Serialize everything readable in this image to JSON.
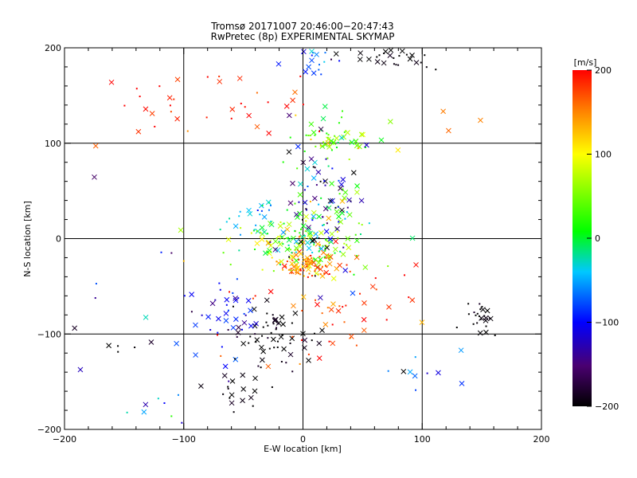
{
  "chart_data": {
    "type": "scatter",
    "title": "Tromsø 20171007 20:46:00−20:47:43",
    "subtitle": "RwPretec (8p) EXPERIMENTAL SKYMAP",
    "xlabel": "E-W location [km]",
    "ylabel": "N-S location [km]",
    "xlim": [
      -200,
      200
    ],
    "ylim": [
      -200,
      200
    ],
    "x_ticks": [
      "−200",
      "−100",
      "0",
      "100",
      "200"
    ],
    "y_ticks": [
      "200",
      "100",
      "0",
      "−100",
      "−200"
    ],
    "grid": "lines at -100, 0, 100 on both axes",
    "colorbar": {
      "label": "[m/s]",
      "range": [
        -200,
        200
      ],
      "ticks": [
        "200",
        "100",
        "0",
        "−100",
        "−200"
      ],
      "colormap": "rainbow (black → blue → cyan → green → yellow → red)"
    },
    "marker_types": [
      "small dot",
      "cross"
    ],
    "clusters": [
      {
        "cx": 5,
        "cy": -28,
        "sx": 12,
        "sy": 6,
        "n": 90,
        "v": 150,
        "vs": 35
      },
      {
        "cx": -5,
        "cy": -5,
        "sx": 28,
        "sy": 12,
        "n": 110,
        "v": 60,
        "vs": 45
      },
      {
        "cx": 10,
        "cy": 10,
        "sx": 25,
        "sy": 25,
        "n": 80,
        "v": 10,
        "vs": 40
      },
      {
        "cx": 20,
        "cy": 105,
        "sx": 22,
        "sy": 12,
        "n": 60,
        "v": 40,
        "vs": 40
      },
      {
        "cx": 15,
        "cy": 40,
        "sx": 20,
        "sy": 35,
        "n": 70,
        "v": -140,
        "vs": 50
      },
      {
        "cx": -25,
        "cy": -100,
        "sx": 20,
        "sy": 15,
        "n": 60,
        "v": -200,
        "vs": 15
      },
      {
        "cx": -60,
        "cy": -85,
        "sx": 15,
        "sy": 20,
        "n": 35,
        "v": -100,
        "vs": 20
      },
      {
        "cx": -50,
        "cy": -160,
        "sx": 15,
        "sy": 15,
        "n": 20,
        "v": -200,
        "vs": 10
      },
      {
        "cx": 70,
        "cy": 190,
        "sx": 20,
        "sy": 8,
        "n": 30,
        "v": -200,
        "vs": 10
      },
      {
        "cx": 10,
        "cy": 185,
        "sx": 15,
        "sy": 10,
        "n": 20,
        "v": -80,
        "vs": 30
      },
      {
        "cx": 150,
        "cy": -85,
        "sx": 8,
        "sy": 10,
        "n": 25,
        "v": -200,
        "vs": 10
      },
      {
        "cx": -50,
        "cy": 140,
        "sx": 40,
        "sy": 20,
        "n": 25,
        "v": 190,
        "vs": 15
      },
      {
        "cx": -130,
        "cy": 140,
        "sx": 20,
        "sy": 20,
        "n": 12,
        "v": 190,
        "vs": 15
      },
      {
        "cx": -40,
        "cy": 20,
        "sx": 10,
        "sy": 10,
        "n": 20,
        "v": -40,
        "vs": 25
      },
      {
        "cx": 40,
        "cy": -60,
        "sx": 30,
        "sy": 20,
        "n": 25,
        "v": 180,
        "vs": 25
      },
      {
        "cx": 0,
        "cy": -90,
        "sx": 40,
        "sy": 30,
        "n": 25,
        "v": 170,
        "vs": 30
      },
      {
        "cx": -140,
        "cy": -80,
        "sx": 30,
        "sy": 60,
        "n": 20,
        "v": -150,
        "vs": 60
      },
      {
        "cx": 100,
        "cy": -140,
        "sx": 20,
        "sy": 10,
        "n": 10,
        "v": -100,
        "vs": 40
      },
      {
        "cx": -120,
        "cy": -180,
        "sx": 20,
        "sy": 20,
        "n": 8,
        "v": -60,
        "vs": 50
      },
      {
        "cx": 120,
        "cy": 120,
        "sx": 20,
        "sy": 20,
        "n": 4,
        "v": 160,
        "vs": 30
      }
    ]
  }
}
